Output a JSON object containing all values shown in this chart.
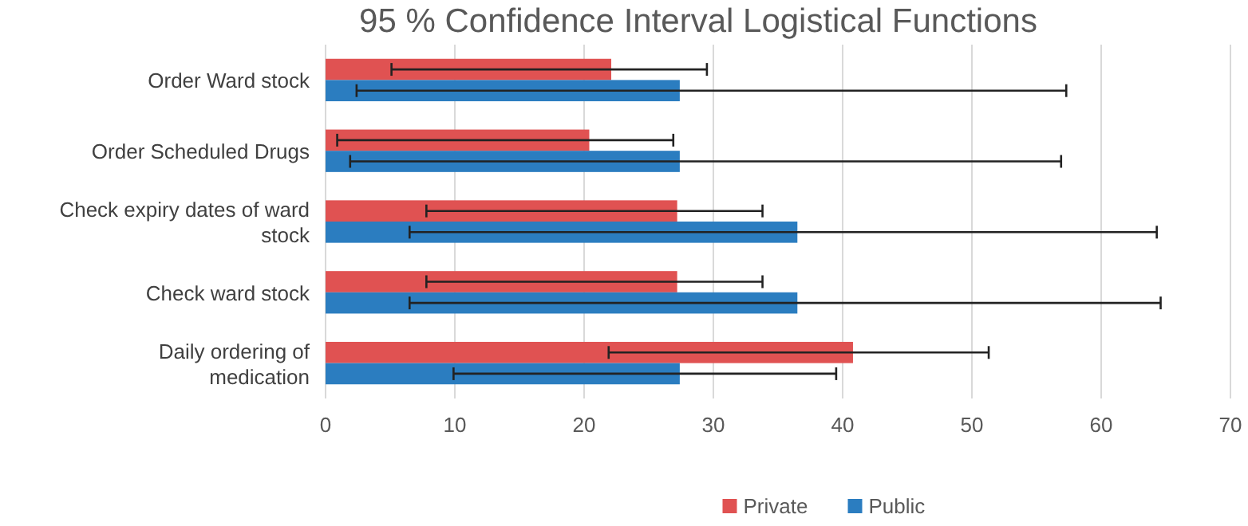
{
  "chart_data": {
    "type": "bar",
    "orientation": "horizontal",
    "title": "95 % Confidence Interval Logistical Functions",
    "categories": [
      "Order Ward stock",
      "Order Scheduled Drugs",
      "Check expiry dates of ward stock",
      "Check ward stock",
      "Daily ordering of medication"
    ],
    "series": [
      {
        "name": "Private",
        "color": "#e05252",
        "values": [
          22.1,
          20.4,
          27.2,
          27.2,
          40.8
        ],
        "errors": [
          [
            5.1,
            29.5
          ],
          [
            0.9,
            26.9
          ],
          [
            7.8,
            33.8
          ],
          [
            7.8,
            33.8
          ],
          [
            21.9,
            51.3
          ]
        ]
      },
      {
        "name": "Public",
        "color": "#2b7dc0",
        "values": [
          27.4,
          27.4,
          36.5,
          36.5,
          27.4
        ],
        "errors": [
          [
            2.4,
            57.3
          ],
          [
            1.9,
            56.9
          ],
          [
            6.5,
            64.3
          ],
          [
            6.5,
            64.6
          ],
          [
            9.9,
            39.5
          ]
        ]
      }
    ],
    "xlim": [
      0,
      70
    ],
    "xticks": [
      0,
      10,
      20,
      30,
      40,
      50,
      60,
      70
    ],
    "grid": "x",
    "legend": "bottom"
  }
}
